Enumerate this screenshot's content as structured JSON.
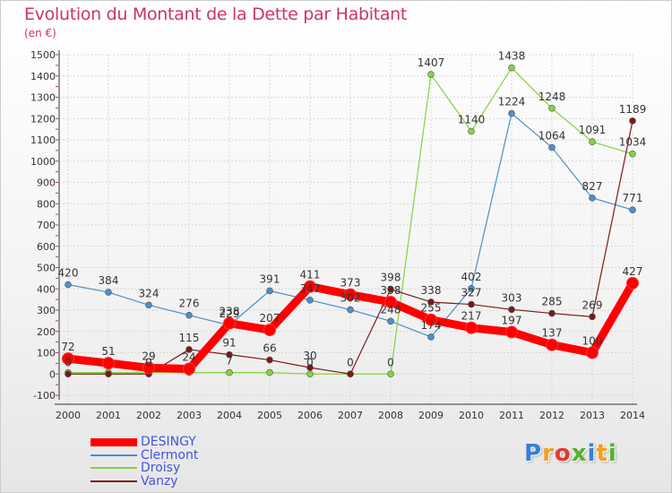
{
  "chart_data": {
    "type": "line",
    "title": "Evolution du Montant de la Dette par Habitant",
    "subtitle": "(en €)",
    "x": [
      2000,
      2001,
      2002,
      2003,
      2004,
      2005,
      2006,
      2007,
      2008,
      2009,
      2010,
      2011,
      2012,
      2013,
      2014
    ],
    "ylim": [
      -100,
      1500
    ],
    "yticks": [
      -100,
      0,
      100,
      200,
      300,
      400,
      500,
      600,
      700,
      800,
      900,
      1000,
      1100,
      1200,
      1300,
      1400,
      1500
    ],
    "series": [
      {
        "name": "DESINGY",
        "color": "#ff0000",
        "values": [
          72,
          51,
          29,
          24,
          238,
          207,
          411,
          373,
          338,
          255,
          217,
          197,
          137,
          100,
          427
        ],
        "labels": [
          "72",
          "51",
          "29",
          "24",
          "238",
          "207",
          "411",
          "373",
          "338",
          "255",
          "217",
          "197",
          "137",
          "100",
          "427"
        ]
      },
      {
        "name": "Clermont",
        "color": "#4f8ec9",
        "values": [
          420,
          384,
          324,
          276,
          229,
          391,
          347,
          302,
          248,
          174,
          402,
          1224,
          1064,
          827,
          771
        ],
        "labels": [
          "420",
          "384",
          "324",
          "276",
          "229",
          "391",
          "347",
          "302",
          "248",
          "174",
          "402",
          "1224",
          "1064",
          "827",
          "771"
        ]
      },
      {
        "name": "Droisy",
        "color": "#88d040",
        "values": [
          7,
          7,
          7,
          7,
          7,
          7,
          0,
          0,
          0,
          1407,
          1140,
          1438,
          1248,
          1091,
          1034
        ],
        "labels": [
          "",
          "",
          "",
          "",
          "7",
          "",
          "0",
          "",
          "0",
          "1407",
          "1140",
          "1438",
          "1248",
          "1091",
          "1034"
        ]
      },
      {
        "name": "Vanzy",
        "color": "#7a1a1a",
        "values": [
          0,
          0,
          0,
          115,
          91,
          66,
          30,
          0,
          398,
          338,
          327,
          303,
          285,
          269,
          1189
        ],
        "labels": [
          "0",
          "",
          "0",
          "115",
          "91",
          "66",
          "30",
          "0",
          "398",
          "338",
          "327",
          "303",
          "285",
          "269",
          "1189"
        ]
      }
    ]
  },
  "branding": {
    "logo_text": "Proxiti"
  }
}
